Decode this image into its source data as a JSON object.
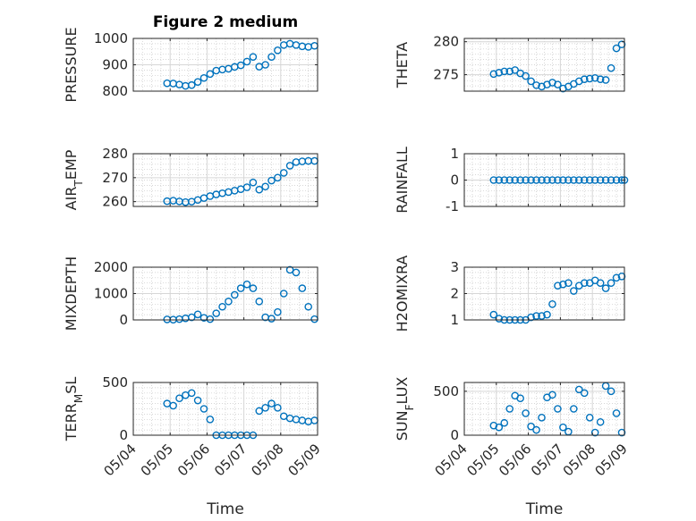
{
  "figure": {
    "title": "Figure 2 medium",
    "marker_color": "#0072BD",
    "axis_color": "#262626",
    "grid_color": "#d6d6d6",
    "minor_grid_color": "#c8c8c8"
  },
  "chart_data": [
    {
      "type": "scatter",
      "title": "Figure 2 medium",
      "ylabel": "PRESSURE",
      "ylim": [
        800,
        1000
      ],
      "yticks": [
        800,
        900,
        1000
      ],
      "x_axis": "date",
      "xlim": [
        "05/04",
        "05/09"
      ],
      "grid": "major+minor",
      "series": [
        {
          "x": [
            "05/04 22:00",
            "05/05 02:00",
            "05/05 06:00",
            "05/05 10:00",
            "05/05 14:00",
            "05/05 18:00",
            "05/05 22:00",
            "05/06 02:00",
            "05/06 06:00",
            "05/06 10:00",
            "05/06 14:00",
            "05/06 18:00",
            "05/06 22:00",
            "05/07 02:00",
            "05/07 06:00",
            "05/07 10:00",
            "05/07 14:00",
            "05/07 18:00",
            "05/07 22:00",
            "05/08 02:00",
            "05/08 06:00",
            "05/08 10:00",
            "05/08 14:00",
            "05/08 18:00",
            "05/08 22:00"
          ],
          "y": [
            830,
            829,
            825,
            820,
            823,
            835,
            850,
            865,
            878,
            882,
            885,
            892,
            898,
            912,
            930,
            893,
            900,
            930,
            955,
            975,
            980,
            975,
            970,
            968,
            972
          ]
        }
      ]
    },
    {
      "type": "scatter",
      "ylabel": "THETA",
      "ylim": [
        272.5,
        280.5
      ],
      "yticks": [
        275,
        280
      ],
      "x_axis": "date",
      "xlim": [
        "05/04",
        "05/09"
      ],
      "grid": "major+minor",
      "series": [
        {
          "x": [
            "05/04 22:00",
            "05/05 02:00",
            "05/05 06:00",
            "05/05 10:00",
            "05/05 14:00",
            "05/05 18:00",
            "05/05 22:00",
            "05/06 02:00",
            "05/06 06:00",
            "05/06 10:00",
            "05/06 14:00",
            "05/06 18:00",
            "05/06 22:00",
            "05/07 02:00",
            "05/07 06:00",
            "05/07 10:00",
            "05/07 14:00",
            "05/07 18:00",
            "05/07 22:00",
            "05/08 02:00",
            "05/08 06:00",
            "05/08 10:00",
            "05/08 14:00",
            "05/08 18:00",
            "05/08 22:00"
          ],
          "y": [
            275.1,
            275.3,
            275.5,
            275.5,
            275.7,
            275.2,
            274.8,
            274.0,
            273.4,
            273.2,
            273.5,
            273.8,
            273.5,
            272.9,
            273.2,
            273.6,
            274.0,
            274.3,
            274.4,
            274.5,
            274.3,
            274.2,
            276.0,
            279.0,
            279.6
          ]
        }
      ]
    },
    {
      "type": "scatter",
      "ylabel": "AIR_TEMP",
      "ylim": [
        258,
        280
      ],
      "yticks": [
        260,
        270,
        280
      ],
      "x_axis": "date",
      "xlim": [
        "05/04",
        "05/09"
      ],
      "grid": "major+minor",
      "series": [
        {
          "x": [
            "05/04 22:00",
            "05/05 02:00",
            "05/05 06:00",
            "05/05 10:00",
            "05/05 14:00",
            "05/05 18:00",
            "05/05 22:00",
            "05/06 02:00",
            "05/06 06:00",
            "05/06 10:00",
            "05/06 14:00",
            "05/06 18:00",
            "05/06 22:00",
            "05/07 02:00",
            "05/07 06:00",
            "05/07 10:00",
            "05/07 14:00",
            "05/07 18:00",
            "05/07 22:00",
            "05/08 02:00",
            "05/08 06:00",
            "05/08 10:00",
            "05/08 14:00",
            "05/08 18:00",
            "05/08 22:00"
          ],
          "y": [
            260.2,
            260.4,
            260.1,
            259.8,
            260.0,
            260.7,
            261.5,
            262.3,
            263.0,
            263.5,
            264.0,
            264.6,
            265.2,
            266.0,
            268.0,
            265.0,
            266.3,
            268.8,
            270.0,
            272.0,
            275.0,
            276.5,
            276.8,
            277.0,
            277.0
          ]
        }
      ]
    },
    {
      "type": "scatter",
      "ylabel": "RAINFALL",
      "ylim": [
        -1,
        1
      ],
      "yticks": [
        -1,
        0,
        1
      ],
      "x_axis": "date",
      "xlim": [
        "05/04",
        "05/09"
      ],
      "grid": "major+minor",
      "series": [
        {
          "x": [
            "05/04 22:00",
            "05/05 02:00",
            "05/05 06:00",
            "05/05 10:00",
            "05/05 14:00",
            "05/05 18:00",
            "05/05 22:00",
            "05/06 02:00",
            "05/06 06:00",
            "05/06 10:00",
            "05/06 14:00",
            "05/06 18:00",
            "05/06 22:00",
            "05/07 02:00",
            "05/07 06:00",
            "05/07 10:00",
            "05/07 14:00",
            "05/07 18:00",
            "05/07 22:00",
            "05/08 02:00",
            "05/08 06:00",
            "05/08 10:00",
            "05/08 14:00",
            "05/08 18:00",
            "05/08 22:00",
            "05/09 00:00"
          ],
          "y": [
            0,
            0,
            0,
            0,
            0,
            0,
            0,
            0,
            0,
            0,
            0,
            0,
            0,
            0,
            0,
            0,
            0,
            0,
            0,
            0,
            0,
            0,
            0,
            0,
            0,
            0
          ]
        }
      ]
    },
    {
      "type": "scatter",
      "ylabel": "MIXDEPTH",
      "ylim": [
        0,
        2000
      ],
      "yticks": [
        0,
        1000,
        2000
      ],
      "x_axis": "date",
      "xlim": [
        "05/04",
        "05/09"
      ],
      "grid": "major+minor",
      "series": [
        {
          "x": [
            "05/04 22:00",
            "05/05 02:00",
            "05/05 06:00",
            "05/05 10:00",
            "05/05 14:00",
            "05/05 18:00",
            "05/05 22:00",
            "05/06 02:00",
            "05/06 06:00",
            "05/06 10:00",
            "05/06 14:00",
            "05/06 18:00",
            "05/06 22:00",
            "05/07 02:00",
            "05/07 06:00",
            "05/07 10:00",
            "05/07 14:00",
            "05/07 18:00",
            "05/07 22:00",
            "05/08 02:00",
            "05/08 06:00",
            "05/08 10:00",
            "05/08 14:00",
            "05/08 18:00",
            "05/08 22:00"
          ],
          "y": [
            20,
            10,
            30,
            60,
            100,
            210,
            80,
            30,
            250,
            500,
            700,
            950,
            1200,
            1350,
            1200,
            700,
            100,
            50,
            300,
            1000,
            1900,
            1800,
            1200,
            500,
            30
          ]
        }
      ]
    },
    {
      "type": "scatter",
      "ylabel": "H2OMIXRA",
      "ylim": [
        1,
        3
      ],
      "yticks": [
        1,
        2,
        3
      ],
      "x_axis": "date",
      "xlim": [
        "05/04",
        "05/09"
      ],
      "grid": "major+minor",
      "series": [
        {
          "x": [
            "05/04 22:00",
            "05/05 02:00",
            "05/05 06:00",
            "05/05 10:00",
            "05/05 14:00",
            "05/05 18:00",
            "05/05 22:00",
            "05/06 02:00",
            "05/06 06:00",
            "05/06 10:00",
            "05/06 14:00",
            "05/06 18:00",
            "05/06 22:00",
            "05/07 02:00",
            "05/07 06:00",
            "05/07 10:00",
            "05/07 14:00",
            "05/07 18:00",
            "05/07 22:00",
            "05/08 02:00",
            "05/08 06:00",
            "05/08 10:00",
            "05/08 14:00",
            "05/08 18:00",
            "05/08 22:00"
          ],
          "y": [
            1.2,
            1.05,
            1.0,
            1.0,
            1.0,
            1.0,
            1.0,
            1.1,
            1.15,
            1.15,
            1.2,
            1.6,
            2.3,
            2.35,
            2.4,
            2.1,
            2.3,
            2.4,
            2.4,
            2.5,
            2.4,
            2.2,
            2.4,
            2.6,
            2.65
          ]
        }
      ]
    },
    {
      "type": "scatter",
      "ylabel": "TERR_MSL",
      "ylim": [
        0,
        500
      ],
      "yticks": [
        0,
        500
      ],
      "x_axis": "date",
      "xlim": [
        "05/04",
        "05/09"
      ],
      "grid": "major+minor",
      "series": [
        {
          "x": [
            "05/04 22:00",
            "05/05 02:00",
            "05/05 06:00",
            "05/05 10:00",
            "05/05 14:00",
            "05/05 18:00",
            "05/05 22:00",
            "05/06 02:00",
            "05/06 06:00",
            "05/06 10:00",
            "05/06 14:00",
            "05/06 18:00",
            "05/06 22:00",
            "05/07 02:00",
            "05/07 06:00",
            "05/07 10:00",
            "05/07 14:00",
            "05/07 18:00",
            "05/07 22:00",
            "05/08 02:00",
            "05/08 06:00",
            "05/08 10:00",
            "05/08 14:00",
            "05/08 18:00",
            "05/08 22:00"
          ],
          "y": [
            300,
            280,
            350,
            380,
            400,
            330,
            250,
            150,
            0,
            0,
            0,
            0,
            0,
            0,
            0,
            230,
            260,
            300,
            260,
            180,
            160,
            150,
            140,
            130,
            140
          ]
        }
      ]
    },
    {
      "type": "scatter",
      "ylabel": "SUN_FLUX",
      "ylim": [
        0,
        600
      ],
      "yticks": [
        0,
        500
      ],
      "x_axis": "date",
      "xlim": [
        "05/04",
        "05/09"
      ],
      "grid": "major+minor",
      "series": [
        {
          "x": [
            "05/04 22:00",
            "05/05 02:00",
            "05/05 06:00",
            "05/05 10:00",
            "05/05 14:00",
            "05/05 18:00",
            "05/05 22:00",
            "05/06 02:00",
            "05/06 06:00",
            "05/06 10:00",
            "05/06 14:00",
            "05/06 18:00",
            "05/06 22:00",
            "05/07 02:00",
            "05/07 06:00",
            "05/07 10:00",
            "05/07 14:00",
            "05/07 18:00",
            "05/07 22:00",
            "05/08 02:00",
            "05/08 06:00",
            "05/08 10:00",
            "05/08 14:00",
            "05/08 18:00",
            "05/08 22:00"
          ],
          "y": [
            110,
            90,
            140,
            300,
            450,
            420,
            250,
            100,
            60,
            200,
            430,
            460,
            300,
            90,
            40,
            300,
            520,
            480,
            200,
            30,
            150,
            560,
            500,
            250,
            30
          ]
        }
      ]
    }
  ],
  "xaxis": {
    "tick_labels": [
      "05/04",
      "05/05",
      "05/06",
      "05/07",
      "05/08",
      "05/09"
    ],
    "label": "Time"
  }
}
